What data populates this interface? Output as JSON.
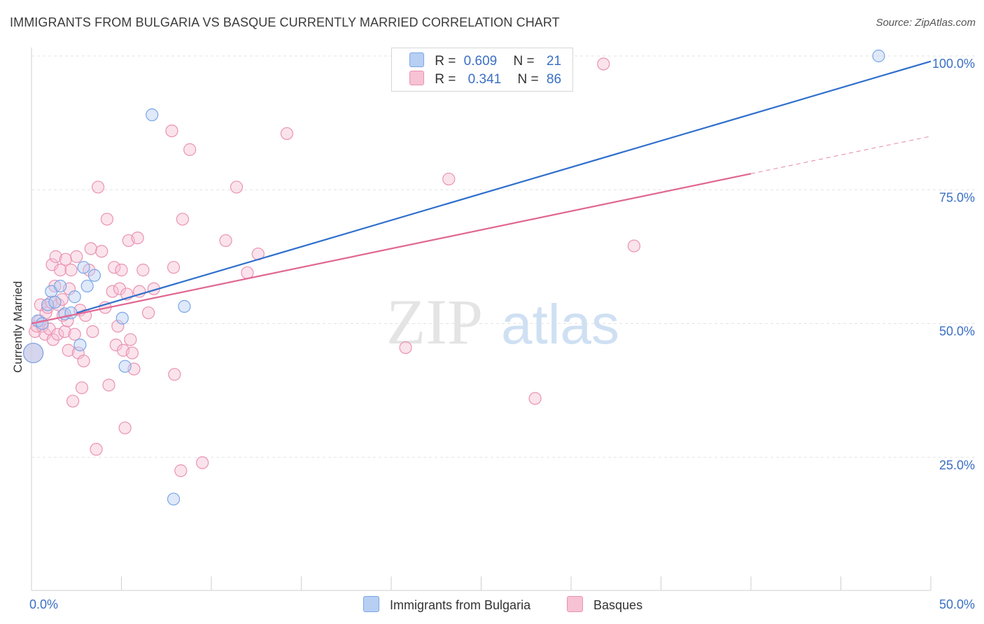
{
  "title": "IMMIGRANTS FROM BULGARIA VS BASQUE CURRENTLY MARRIED CORRELATION CHART",
  "source": "Source: ZipAtlas.com",
  "watermark": {
    "zip": "ZIP",
    "atlas": "atlas"
  },
  "legend_top": {
    "rows": [
      {
        "r_label": "R =",
        "r_value": "0.609",
        "n_label": "N =",
        "n_value": "21"
      },
      {
        "r_label": "R =",
        "r_value": "0.341",
        "n_label": "N =",
        "n_value": "86"
      }
    ]
  },
  "chart_data": {
    "type": "scatter",
    "title": "IMMIGRANTS FROM BULGARIA VS BASQUE CURRENTLY MARRIED CORRELATION CHART",
    "xlabel": "",
    "ylabel": "Currently Married",
    "xlim": [
      0,
      50
    ],
    "ylim": [
      0,
      104
    ],
    "x_tick_labels": [
      "0.0%",
      "50.0%"
    ],
    "y_ticks": [
      25,
      50,
      75,
      100
    ],
    "y_tick_labels": [
      "25.0%",
      "50.0%",
      "75.0%",
      "100.0%"
    ],
    "grid": true,
    "legend_position": "bottom",
    "series": [
      {
        "name": "Immigrants from Bulgaria",
        "color": "#7aa6e6",
        "fill": "#b7cff3",
        "line_color": "#2f6fcc",
        "r": "0.609",
        "n": "21",
        "trend": {
          "x0": 0,
          "y0": 49.5,
          "x1": 50,
          "y1": 99
        },
        "points": [
          {
            "x": 0.1,
            "y": 44.5,
            "big": true
          },
          {
            "x": 0.35,
            "y": 50.5
          },
          {
            "x": 0.6,
            "y": 50
          },
          {
            "x": 0.9,
            "y": 53.5
          },
          {
            "x": 1.1,
            "y": 56
          },
          {
            "x": 1.3,
            "y": 54
          },
          {
            "x": 1.6,
            "y": 57
          },
          {
            "x": 1.85,
            "y": 51.8
          },
          {
            "x": 2.2,
            "y": 52
          },
          {
            "x": 2.4,
            "y": 55
          },
          {
            "x": 2.7,
            "y": 46
          },
          {
            "x": 2.9,
            "y": 60.5
          },
          {
            "x": 3.1,
            "y": 57
          },
          {
            "x": 3.5,
            "y": 59
          },
          {
            "x": 5.05,
            "y": 51
          },
          {
            "x": 5.2,
            "y": 42
          },
          {
            "x": 6.7,
            "y": 89
          },
          {
            "x": 7.9,
            "y": 17.2
          },
          {
            "x": 8.5,
            "y": 53.2
          },
          {
            "x": 47.1,
            "y": 100
          }
        ]
      },
      {
        "name": "Basques",
        "color": "#ea93b2",
        "fill": "#f6c2d4",
        "line_color": "#e06692",
        "r": "0.341",
        "n": "86",
        "trend": {
          "x0": 0,
          "y0": 50,
          "x1": 40,
          "y1": 78
        },
        "trend_dashed": {
          "x0": 40,
          "y0": 78,
          "x1": 50,
          "y1": 85
        },
        "points": [
          {
            "x": 0.1,
            "y": 44.5,
            "big": true
          },
          {
            "x": 0.2,
            "y": 48.5
          },
          {
            "x": 0.3,
            "y": 49.5
          },
          {
            "x": 0.45,
            "y": 50.5
          },
          {
            "x": 0.5,
            "y": 53.5
          },
          {
            "x": 0.6,
            "y": 49.5
          },
          {
            "x": 0.75,
            "y": 48
          },
          {
            "x": 0.8,
            "y": 52
          },
          {
            "x": 0.9,
            "y": 53
          },
          {
            "x": 1.0,
            "y": 49
          },
          {
            "x": 1.1,
            "y": 54
          },
          {
            "x": 1.15,
            "y": 61
          },
          {
            "x": 1.2,
            "y": 47
          },
          {
            "x": 1.3,
            "y": 57
          },
          {
            "x": 1.35,
            "y": 62.5
          },
          {
            "x": 1.45,
            "y": 48
          },
          {
            "x": 1.5,
            "y": 53.5
          },
          {
            "x": 1.6,
            "y": 60
          },
          {
            "x": 1.7,
            "y": 54.5
          },
          {
            "x": 1.75,
            "y": 51.5
          },
          {
            "x": 1.85,
            "y": 48.5
          },
          {
            "x": 1.9,
            "y": 62
          },
          {
            "x": 2.0,
            "y": 50.5
          },
          {
            "x": 2.05,
            "y": 45
          },
          {
            "x": 2.1,
            "y": 56.5
          },
          {
            "x": 2.2,
            "y": 60
          },
          {
            "x": 2.3,
            "y": 35.5
          },
          {
            "x": 2.4,
            "y": 48
          },
          {
            "x": 2.5,
            "y": 62.5
          },
          {
            "x": 2.6,
            "y": 44.5
          },
          {
            "x": 2.7,
            "y": 52.5
          },
          {
            "x": 2.8,
            "y": 38
          },
          {
            "x": 2.9,
            "y": 43
          },
          {
            "x": 3.0,
            "y": 51.5
          },
          {
            "x": 3.2,
            "y": 60
          },
          {
            "x": 3.3,
            "y": 64
          },
          {
            "x": 3.4,
            "y": 48.5
          },
          {
            "x": 3.6,
            "y": 26.5
          },
          {
            "x": 3.7,
            "y": 75.5
          },
          {
            "x": 3.9,
            "y": 63.5
          },
          {
            "x": 4.1,
            "y": 53
          },
          {
            "x": 4.2,
            "y": 69.5
          },
          {
            "x": 4.3,
            "y": 38.5
          },
          {
            "x": 4.5,
            "y": 56
          },
          {
            "x": 4.6,
            "y": 60.5
          },
          {
            "x": 4.7,
            "y": 46
          },
          {
            "x": 4.8,
            "y": 49.5
          },
          {
            "x": 4.9,
            "y": 56.5
          },
          {
            "x": 5.0,
            "y": 60
          },
          {
            "x": 5.1,
            "y": 45
          },
          {
            "x": 5.2,
            "y": 30.5
          },
          {
            "x": 5.3,
            "y": 55.5
          },
          {
            "x": 5.4,
            "y": 65.5
          },
          {
            "x": 5.5,
            "y": 47
          },
          {
            "x": 5.6,
            "y": 44.5
          },
          {
            "x": 5.7,
            "y": 41.5
          },
          {
            "x": 5.9,
            "y": 66
          },
          {
            "x": 6.0,
            "y": 56
          },
          {
            "x": 6.2,
            "y": 60
          },
          {
            "x": 6.5,
            "y": 52
          },
          {
            "x": 6.8,
            "y": 56.5
          },
          {
            "x": 7.8,
            "y": 86
          },
          {
            "x": 7.9,
            "y": 60.5
          },
          {
            "x": 7.95,
            "y": 40.5
          },
          {
            "x": 8.3,
            "y": 22.5
          },
          {
            "x": 8.4,
            "y": 69.5
          },
          {
            "x": 8.8,
            "y": 82.5
          },
          {
            "x": 9.5,
            "y": 24
          },
          {
            "x": 10.8,
            "y": 65.5
          },
          {
            "x": 11.4,
            "y": 75.5
          },
          {
            "x": 12.0,
            "y": 59.5
          },
          {
            "x": 12.6,
            "y": 63
          },
          {
            "x": 14.2,
            "y": 85.5
          },
          {
            "x": 20.8,
            "y": 45.5
          },
          {
            "x": 23.2,
            "y": 77
          },
          {
            "x": 28.0,
            "y": 36
          },
          {
            "x": 31.8,
            "y": 98.5
          },
          {
            "x": 33.5,
            "y": 64.5
          }
        ]
      }
    ]
  }
}
